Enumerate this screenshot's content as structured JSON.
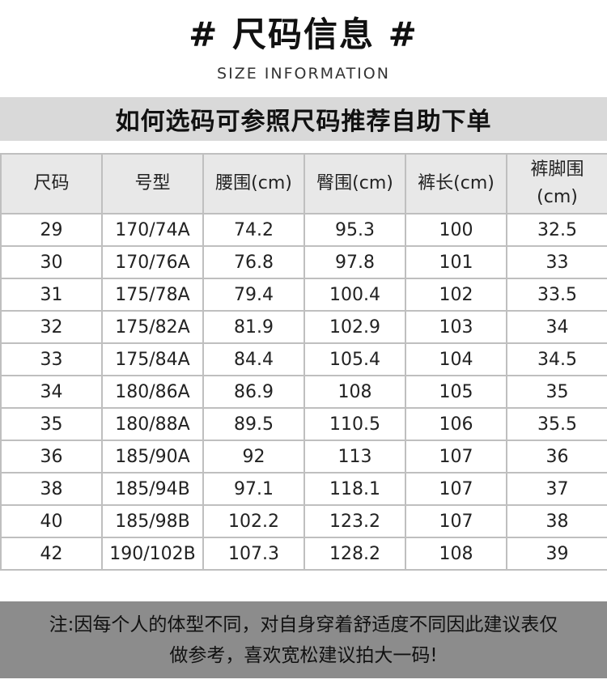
{
  "header": {
    "title": "# 尺码信息 #",
    "subtitle": "SIZE INFORMATION"
  },
  "banner": {
    "text": "如何选码可参照尺码推荐自助下单"
  },
  "table": {
    "columns": [
      "尺码",
      "号型",
      "腰围(cm)",
      "臀围(cm)",
      "裤长(cm)",
      "裤脚围(cm)"
    ],
    "rows": [
      [
        "29",
        "170/74A",
        "74.2",
        "95.3",
        "100",
        "32.5"
      ],
      [
        "30",
        "170/76A",
        "76.8",
        "97.8",
        "101",
        "33"
      ],
      [
        "31",
        "175/78A",
        "79.4",
        "100.4",
        "102",
        "33.5"
      ],
      [
        "32",
        "175/82A",
        "81.9",
        "102.9",
        "103",
        "34"
      ],
      [
        "33",
        "175/84A",
        "84.4",
        "105.4",
        "104",
        "34.5"
      ],
      [
        "34",
        "180/86A",
        "86.9",
        "108",
        "105",
        "35"
      ],
      [
        "35",
        "180/88A",
        "89.5",
        "110.5",
        "106",
        "35.5"
      ],
      [
        "36",
        "185/90A",
        "92",
        "113",
        "107",
        "36"
      ],
      [
        "38",
        "185/94B",
        "97.1",
        "118.1",
        "107",
        "37"
      ],
      [
        "40",
        "185/98B",
        "102.2",
        "123.2",
        "107",
        "38"
      ],
      [
        "42",
        "190/102B",
        "107.3",
        "128.2",
        "108",
        "39"
      ]
    ]
  },
  "note": {
    "line1": "注:因每个人的体型不同，对自身穿着舒适度不同因此建议表仅",
    "line2": "做参考，喜欢宽松建议拍大一码!"
  }
}
